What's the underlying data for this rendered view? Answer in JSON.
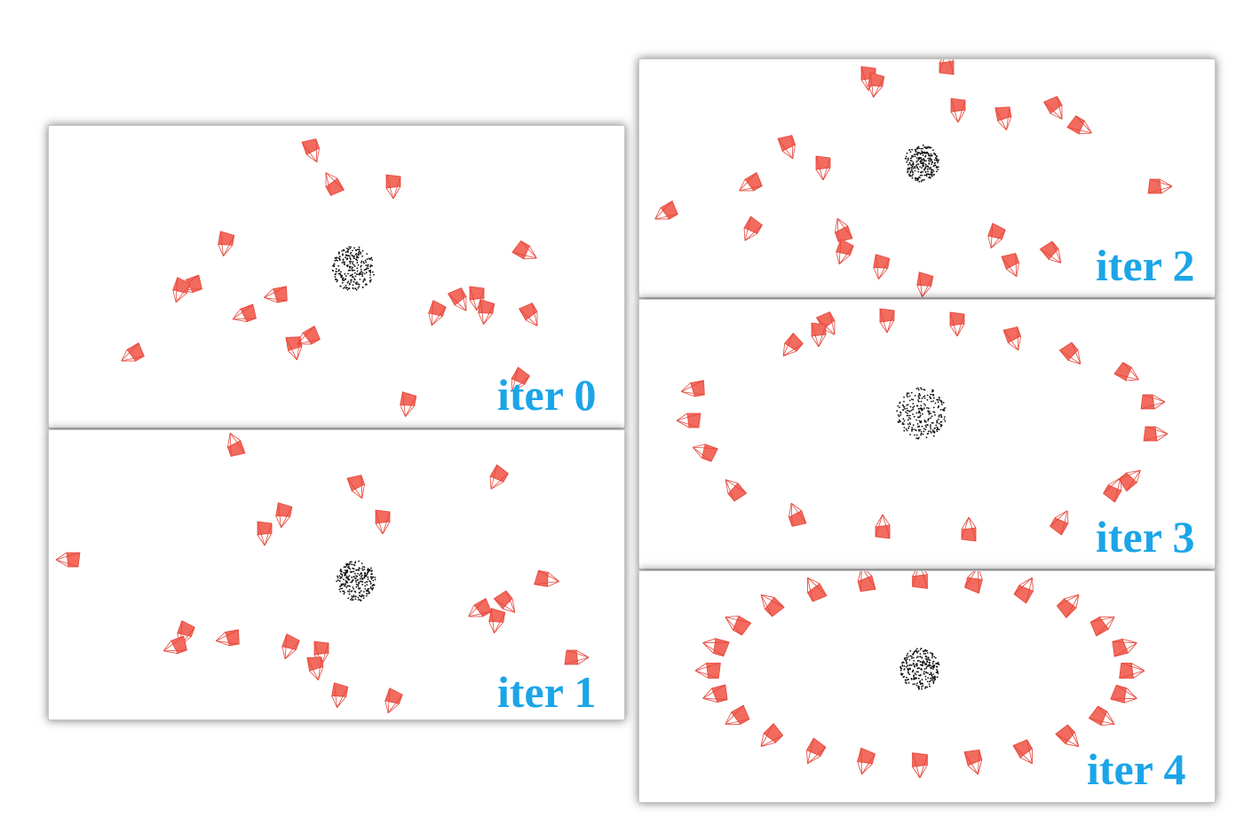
{
  "panels": [
    {
      "id": "iter-0",
      "label": "iter 0"
    },
    {
      "id": "iter-1",
      "label": "iter 1"
    },
    {
      "id": "iter-2",
      "label": "iter 2"
    },
    {
      "id": "iter-3",
      "label": "iter 3"
    },
    {
      "id": "iter-4",
      "label": "iter 4"
    }
  ],
  "colors": {
    "camera_fill": "#f26b5e",
    "camera_edge": "#e5463a",
    "point_cloud": "#111111",
    "label": "#1ba5e8",
    "panel_shadow": "#555555"
  },
  "icons": {
    "camera": "camera-frustum-icon",
    "point_cloud": "point-cloud-icon"
  }
}
